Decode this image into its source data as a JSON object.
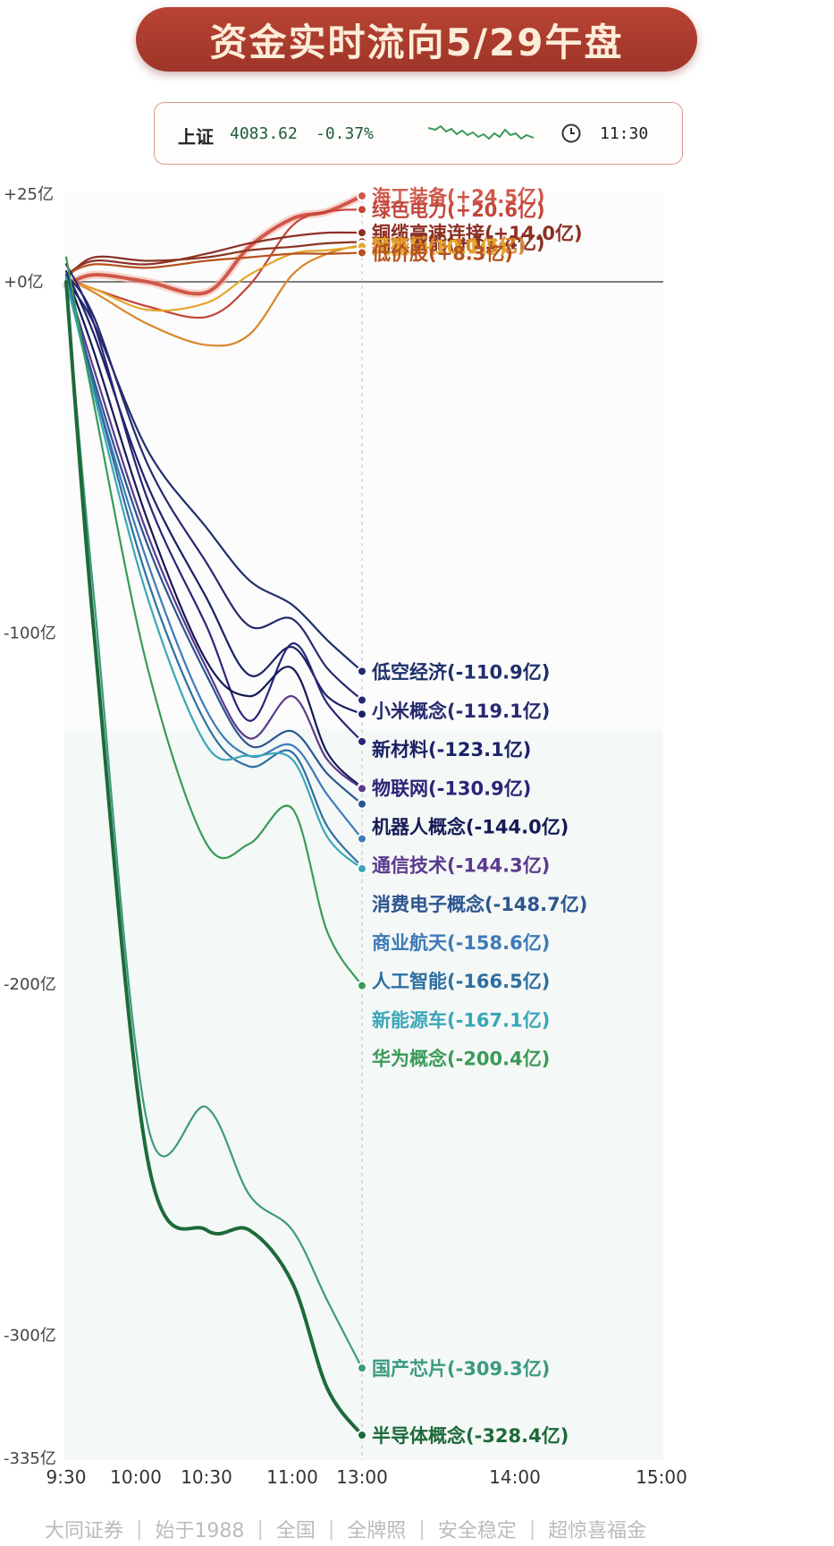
{
  "header": {
    "title": "资金实时流向5/29午盘"
  },
  "index_box": {
    "name": "上证",
    "value": "4083.62",
    "change": "-0.37%",
    "time": "11:30",
    "spark_icon": "index-sparkline",
    "clock_icon": "clock-icon"
  },
  "footer": {
    "items": [
      "大同证券",
      "始于1988",
      "全国",
      "全牌照",
      "安全稳定",
      "超惊喜福金"
    ]
  },
  "chart_data": {
    "type": "line",
    "y_ticks": [
      {
        "value": 25,
        "label": "+25亿"
      },
      {
        "value": 0,
        "label": "+0亿"
      },
      {
        "value": -100,
        "label": "-100亿"
      },
      {
        "value": -200,
        "label": "-200亿"
      },
      {
        "value": -300,
        "label": "-300亿"
      },
      {
        "value": -335,
        "label": "-335亿"
      }
    ],
    "x_ticks": [
      "9:30",
      "10:00",
      "10:30",
      "11:00",
      "13:00",
      "14:00",
      "15:00"
    ],
    "ylim": [
      -335,
      25
    ],
    "current_time": "13:00",
    "series": [
      {
        "name": "海工装备",
        "label": "海工装备(+24.5亿)",
        "color": "#d0584a",
        "label_y": 24.5,
        "values": [
          -1,
          2,
          0,
          -3,
          10,
          18,
          20,
          24.5
        ]
      },
      {
        "name": "绿色电力",
        "label": "绿色电力(+20.6亿)",
        "color": "#c4453a",
        "label_y": 20.6,
        "values": [
          1,
          -2,
          -7,
          -10,
          -1,
          16,
          20,
          20.6
        ]
      },
      {
        "name": "铜缆高速连接",
        "label": "铜缆高速连接(+14.0亿)",
        "color": "#8e2f25",
        "label_y": 14,
        "values": [
          2,
          6,
          5,
          8,
          11,
          13,
          14,
          14
        ]
      },
      {
        "name": "抽水蓄能",
        "label": "抽水蓄能(+11.4亿)",
        "color": "#8a3322",
        "label_y": 11.4,
        "values": [
          1,
          7,
          6,
          7,
          9,
          10,
          11,
          11.4
        ]
      },
      {
        "name": "特高压",
        "label": "特高压(+10.5亿)",
        "color": "#d9862a",
        "label_y": 10.5,
        "values": [
          1,
          -3,
          -12,
          -18,
          -15,
          2,
          8,
          10.5
        ]
      },
      {
        "name": "风能",
        "label": "风能(+10.1亿)",
        "color": "#e5a62e",
        "label_y": 10.1,
        "values": [
          0,
          -2,
          -8,
          -6,
          2,
          8,
          9,
          10.1
        ]
      },
      {
        "name": "低价股",
        "label": "低价股(+8.3亿)",
        "color": "#b5521e",
        "label_y": 8.3,
        "values": [
          2,
          5,
          4,
          6,
          7,
          8,
          8,
          8.3
        ]
      },
      {
        "name": "低空经济",
        "label": "低空经济(-110.9亿)",
        "color": "#1f2f6a",
        "label_y": -111,
        "values": [
          0,
          -12,
          -48,
          -70,
          -85,
          -92,
          -102,
          -110.9
        ]
      },
      {
        "name": "小米概念",
        "label": "小米概念(-119.1亿)",
        "color": "#262a6e",
        "label_y": -122,
        "values": [
          2,
          -10,
          -52,
          -80,
          -98,
          -96,
          -110,
          -119.1
        ]
      },
      {
        "name": "新材料",
        "label": "新材料(-123.1亿)",
        "color": "#1b2266",
        "label_y": -133,
        "values": [
          3,
          -15,
          -58,
          -90,
          -112,
          -104,
          -118,
          -123.1
        ]
      },
      {
        "name": "物联网",
        "label": "物联网(-130.9亿)",
        "color": "#2b2478",
        "label_y": -144,
        "values": [
          5,
          -12,
          -62,
          -98,
          -125,
          -103,
          -120,
          -130.9
        ]
      },
      {
        "name": "机器人概念",
        "label": "机器人概念(-144.0亿)",
        "color": "#141a55",
        "label_y": -155,
        "values": [
          2,
          -20,
          -68,
          -108,
          -118,
          -110,
          -134,
          -144
        ]
      },
      {
        "name": "通信技术",
        "label": "通信技术(-144.3亿)",
        "color": "#5b3a8e",
        "label_y": -166,
        "values": [
          1,
          -25,
          -72,
          -110,
          -130,
          -118,
          -136,
          -144.3
        ]
      },
      {
        "name": "消费电子概念",
        "label": "消费电子概念(-148.7亿)",
        "color": "#2c5590",
        "label_y": -177,
        "values": [
          2,
          -28,
          -75,
          -112,
          -132,
          -128,
          -140,
          -148.7
        ]
      },
      {
        "name": "商业航天",
        "label": "商业航天(-158.6亿)",
        "color": "#3f7ab8",
        "label_y": -188,
        "values": [
          1,
          -30,
          -80,
          -122,
          -135,
          -132,
          -146,
          -158.6
        ]
      },
      {
        "name": "人工智能",
        "label": "人工智能(-166.5亿)",
        "color": "#2e6fa0",
        "label_y": -199,
        "values": [
          0,
          -30,
          -85,
          -126,
          -138,
          -134,
          -155,
          -166.5
        ]
      },
      {
        "name": "新能源车",
        "label": "新能源车(-167.1亿)",
        "color": "#3aa6b8",
        "label_y": -210,
        "values": [
          1,
          -32,
          -90,
          -132,
          -135,
          -136,
          -158,
          -167.1
        ]
      },
      {
        "name": "华为概念",
        "label": "华为概念(-200.4亿)",
        "color": "#3a9a58",
        "label_y": -221,
        "values": [
          7,
          -35,
          -110,
          -160,
          -160,
          -150,
          -185,
          -200.4
        ]
      },
      {
        "name": "国产芯片",
        "label": "国产芯片(-309.3亿)",
        "color": "#3b9a80",
        "label_y": -309.3,
        "values": [
          -2,
          -90,
          -240,
          -235,
          -260,
          -270,
          -290,
          -309.3
        ]
      },
      {
        "name": "半导体概念",
        "label": "半导体概念(-328.4亿)",
        "color": "#1d6a3a",
        "label_y": -328.4,
        "values": [
          0,
          -100,
          -250,
          -270,
          -270,
          -285,
          -315,
          -328.4
        ]
      }
    ],
    "x_values": [
      0,
      12,
      35,
      60,
      75,
      90,
      105,
      120
    ]
  }
}
